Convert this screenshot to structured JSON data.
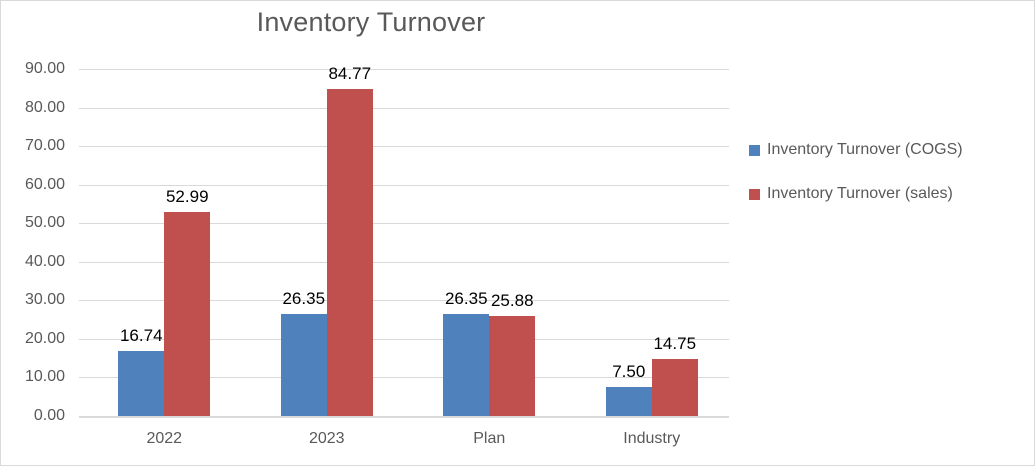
{
  "frame": {
    "background": "#ffffff",
    "border_color": "#d9d9d9"
  },
  "chart_data": {
    "type": "bar",
    "title": "Inventory Turnover",
    "categories": [
      "2022",
      "2023",
      "Plan",
      "Industry"
    ],
    "series": [
      {
        "name": "Inventory Turnover (COGS)",
        "color": "#4F81BD",
        "values": [
          16.74,
          26.35,
          26.35,
          7.5
        ]
      },
      {
        "name": "Inventory Turnover (sales)",
        "color": "#C0504D",
        "values": [
          52.99,
          84.77,
          25.88,
          14.75
        ]
      }
    ],
    "ylim": [
      0,
      90
    ],
    "ytick_step": 10,
    "ytick_labels": [
      "0.00",
      "10.00",
      "20.00",
      "30.00",
      "40.00",
      "50.00",
      "60.00",
      "70.00",
      "80.00",
      "90.00"
    ],
    "grid": true,
    "legend_position": "right",
    "data_labels": true,
    "value_label_decimals": 2,
    "title_color": "#595959",
    "axis_text_color": "#595959",
    "value_label_color": "#000000",
    "gridline_color": "#d9d9d9"
  }
}
